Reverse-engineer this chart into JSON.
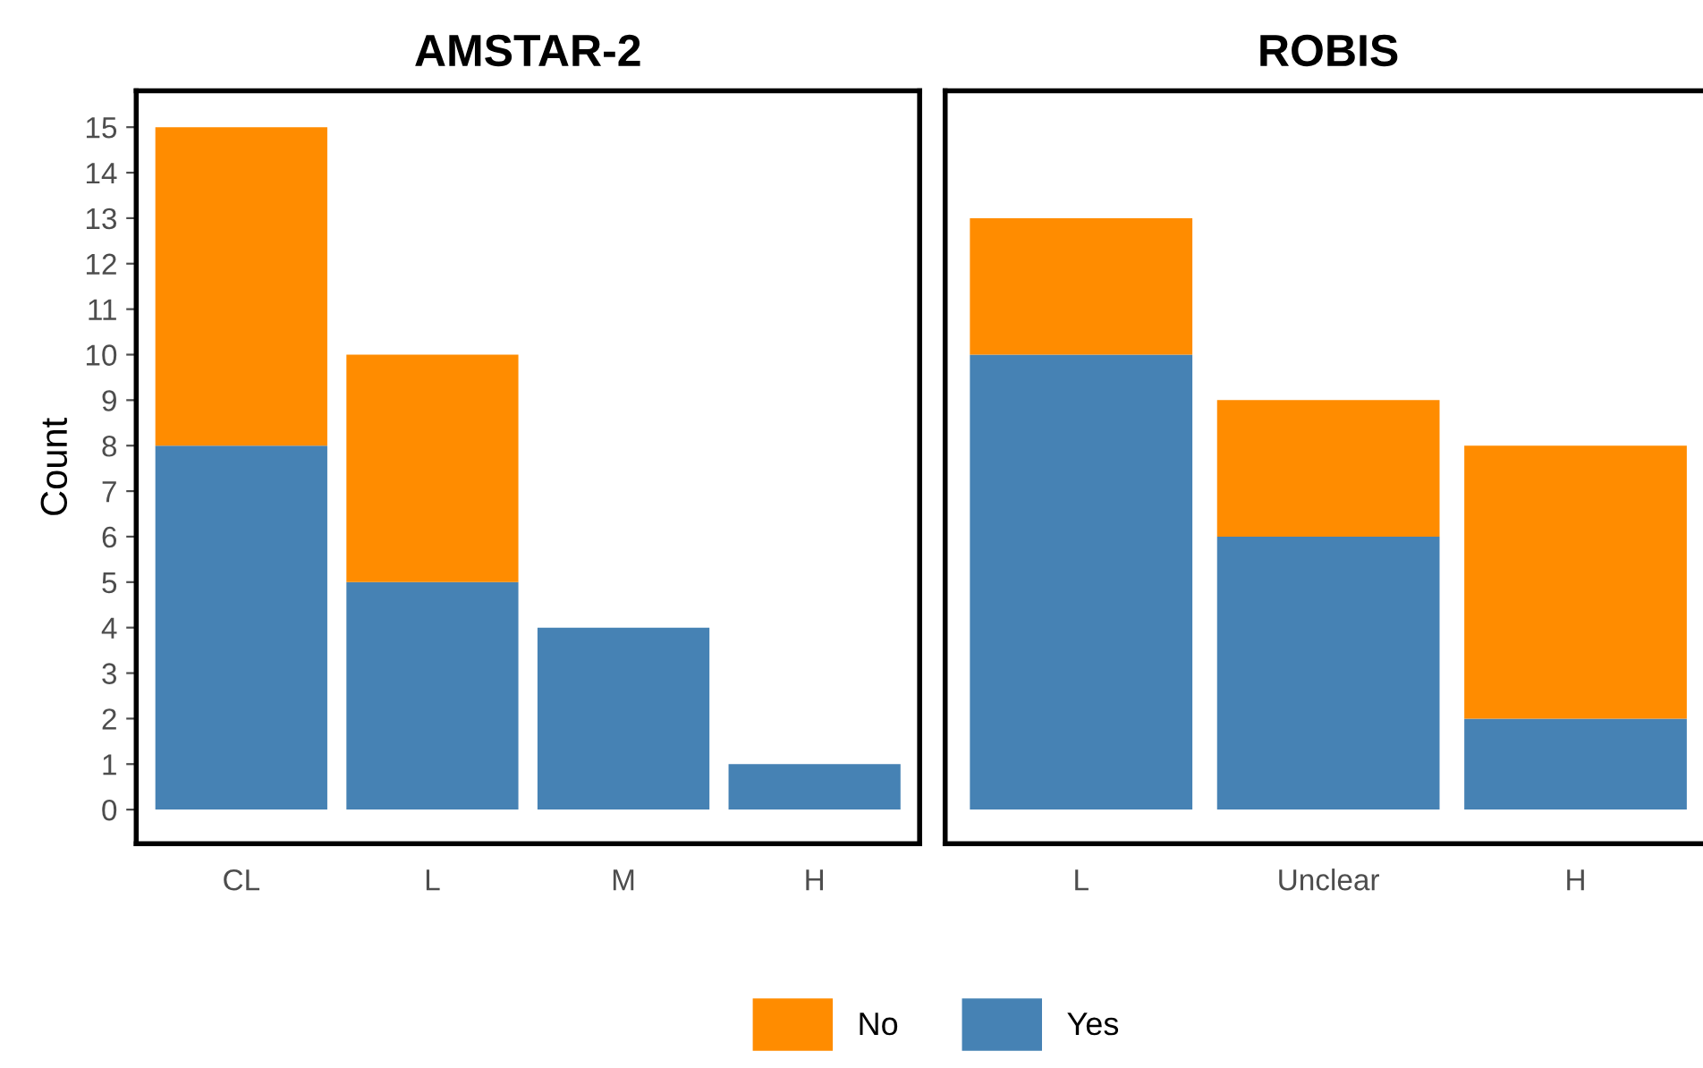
{
  "chart_data": [
    {
      "type": "bar",
      "title": "AMSTAR-2",
      "ylabel": "Count",
      "stacked": true,
      "categories": [
        "CL",
        "L",
        "M",
        "H"
      ],
      "series": [
        {
          "name": "Yes",
          "color": "#4682b4",
          "values": [
            8,
            5,
            4,
            1
          ]
        },
        {
          "name": "No",
          "color": "#ff8c00",
          "values": [
            7,
            5,
            0,
            0
          ]
        }
      ],
      "ylim": [
        -0.75,
        15.8
      ],
      "yticks": [
        0,
        1,
        2,
        3,
        4,
        5,
        6,
        7,
        8,
        9,
        10,
        11,
        12,
        13,
        14,
        15
      ],
      "legend": "bottom"
    },
    {
      "type": "bar",
      "title": "ROBIS",
      "stacked": true,
      "categories": [
        "L",
        "Unclear",
        "H"
      ],
      "series": [
        {
          "name": "Yes",
          "color": "#4682b4",
          "values": [
            10,
            6,
            2
          ]
        },
        {
          "name": "No",
          "color": "#ff8c00",
          "values": [
            3,
            3,
            6
          ]
        }
      ],
      "ylim": [
        -0.75,
        15.8
      ],
      "yticks": [
        0,
        1,
        2,
        3,
        4,
        5,
        6,
        7,
        8,
        9,
        10,
        11,
        12,
        13,
        14,
        15
      ],
      "tick_labels": "x",
      "legend": "bottom"
    }
  ]
}
